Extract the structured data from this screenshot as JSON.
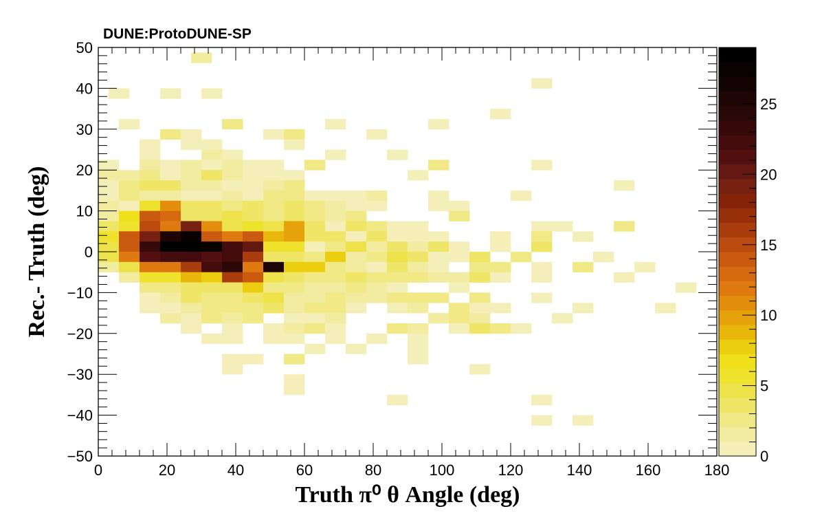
{
  "experiment_label": "DUNE:ProtoDUNE-SP",
  "chart_data": {
    "type": "heatmap",
    "xlabel": "Truth  π⁰  θ Angle (deg)",
    "ylabel": "Rec.- Truth (deg)",
    "xlim": [
      0,
      180
    ],
    "ylim": [
      -50,
      50
    ],
    "x_bin_width": 6,
    "y_bin_width": 2.5,
    "z_range": [
      0,
      29
    ],
    "x_ticks": [
      0,
      20,
      40,
      60,
      80,
      100,
      120,
      140,
      160,
      180
    ],
    "y_ticks": [
      -50,
      -40,
      -30,
      -20,
      -10,
      0,
      10,
      20,
      30,
      40,
      50
    ],
    "z_ticks": [
      0,
      5,
      10,
      15,
      20,
      25
    ],
    "palette": [
      "#f4efb8",
      "#f2eca0",
      "#f0e985",
      "#efe668",
      "#eee24a",
      "#efe22c",
      "#f0e01a",
      "#ecce10",
      "#e9b70c",
      "#e6a20b",
      "#e38e0d",
      "#de7a0f",
      "#d66a10",
      "#ca5a10",
      "#bb4b0f",
      "#aa3d0e",
      "#98300c",
      "#86240a",
      "#752010",
      "#641812",
      "#521010",
      "#440c0c",
      "#360a0a",
      "#290808",
      "#1e0606",
      "#130404",
      "#080202",
      "#000000"
    ],
    "cells": [
      [
        30,
        47.5,
        2
      ],
      [
        6,
        38.75,
        1
      ],
      [
        21,
        38.75,
        1
      ],
      [
        33,
        38.75,
        1
      ],
      [
        129,
        41.25,
        1
      ],
      [
        117,
        33.75,
        1
      ],
      [
        9,
        31.25,
        1
      ],
      [
        39,
        31.25,
        3
      ],
      [
        69,
        31.25,
        1
      ],
      [
        99,
        31.25,
        1
      ],
      [
        21,
        28.75,
        3
      ],
      [
        27,
        28.75,
        1
      ],
      [
        51,
        28.75,
        1
      ],
      [
        57,
        28.75,
        3
      ],
      [
        81,
        28.75,
        1
      ],
      [
        15,
        26.25,
        1
      ],
      [
        27,
        26.25,
        1
      ],
      [
        33,
        26.25,
        1
      ],
      [
        57,
        26.25,
        1
      ],
      [
        15,
        23.75,
        1
      ],
      [
        33,
        23.75,
        2
      ],
      [
        39,
        23.75,
        1
      ],
      [
        69,
        23.75,
        1
      ],
      [
        87,
        23.75,
        1
      ],
      [
        3,
        21.25,
        1
      ],
      [
        15,
        21.25,
        2
      ],
      [
        21,
        21.25,
        1
      ],
      [
        27,
        21.25,
        2
      ],
      [
        33,
        21.25,
        1
      ],
      [
        39,
        21.25,
        2
      ],
      [
        45,
        21.25,
        1
      ],
      [
        51,
        21.25,
        1
      ],
      [
        63,
        21.25,
        3
      ],
      [
        99,
        21.25,
        3
      ],
      [
        129,
        21.25,
        1
      ],
      [
        3,
        18.75,
        2
      ],
      [
        9,
        18.75,
        2
      ],
      [
        15,
        18.75,
        3
      ],
      [
        21,
        18.75,
        1
      ],
      [
        27,
        18.75,
        2
      ],
      [
        33,
        18.75,
        4
      ],
      [
        39,
        18.75,
        2
      ],
      [
        45,
        18.75,
        1
      ],
      [
        51,
        18.75,
        1
      ],
      [
        57,
        18.75,
        1
      ],
      [
        93,
        18.75,
        1
      ],
      [
        3,
        16.25,
        1
      ],
      [
        9,
        16.25,
        3
      ],
      [
        15,
        16.25,
        4
      ],
      [
        21,
        16.25,
        4
      ],
      [
        27,
        16.25,
        2
      ],
      [
        33,
        16.25,
        2
      ],
      [
        39,
        16.25,
        1
      ],
      [
        45,
        16.25,
        1
      ],
      [
        51,
        16.25,
        2
      ],
      [
        57,
        16.25,
        3
      ],
      [
        153,
        16.25,
        1
      ],
      [
        3,
        13.75,
        1
      ],
      [
        9,
        13.75,
        3
      ],
      [
        15,
        13.75,
        2
      ],
      [
        21,
        13.75,
        2
      ],
      [
        27,
        13.75,
        1
      ],
      [
        33,
        13.75,
        1
      ],
      [
        39,
        13.75,
        2
      ],
      [
        45,
        13.75,
        1
      ],
      [
        51,
        13.75,
        3
      ],
      [
        57,
        13.75,
        3
      ],
      [
        63,
        13.75,
        1
      ],
      [
        69,
        13.75,
        1
      ],
      [
        75,
        13.75,
        1
      ],
      [
        81,
        13.75,
        2
      ],
      [
        99,
        13.75,
        1
      ],
      [
        123,
        13.75,
        1
      ],
      [
        3,
        11.25,
        2
      ],
      [
        9,
        11.25,
        1
      ],
      [
        15,
        11.25,
        6
      ],
      [
        21,
        11.25,
        11
      ],
      [
        27,
        11.25,
        4
      ],
      [
        33,
        11.25,
        4
      ],
      [
        39,
        11.25,
        3
      ],
      [
        45,
        11.25,
        4
      ],
      [
        51,
        11.25,
        3
      ],
      [
        57,
        11.25,
        4
      ],
      [
        63,
        11.25,
        3
      ],
      [
        69,
        11.25,
        2
      ],
      [
        75,
        11.25,
        1
      ],
      [
        81,
        11.25,
        1
      ],
      [
        99,
        11.25,
        1
      ],
      [
        105,
        11.25,
        1
      ],
      [
        3,
        8.75,
        2
      ],
      [
        9,
        8.75,
        7
      ],
      [
        15,
        8.75,
        14
      ],
      [
        21,
        8.75,
        13
      ],
      [
        27,
        8.75,
        4
      ],
      [
        33,
        8.75,
        4
      ],
      [
        39,
        8.75,
        5
      ],
      [
        45,
        8.75,
        4
      ],
      [
        51,
        8.75,
        3
      ],
      [
        57,
        8.75,
        4
      ],
      [
        63,
        8.75,
        3
      ],
      [
        69,
        8.75,
        2
      ],
      [
        75,
        8.75,
        3
      ],
      [
        105,
        8.75,
        3
      ],
      [
        3,
        6.25,
        4
      ],
      [
        9,
        6.25,
        6
      ],
      [
        15,
        6.25,
        15
      ],
      [
        21,
        6.25,
        12
      ],
      [
        27,
        6.25,
        19
      ],
      [
        33,
        6.25,
        11
      ],
      [
        39,
        6.25,
        5
      ],
      [
        45,
        6.25,
        6
      ],
      [
        51,
        6.25,
        5
      ],
      [
        57,
        6.25,
        10
      ],
      [
        63,
        6.25,
        4
      ],
      [
        69,
        6.25,
        1
      ],
      [
        75,
        6.25,
        4
      ],
      [
        81,
        6.25,
        3
      ],
      [
        87,
        6.25,
        1
      ],
      [
        93,
        6.25,
        1
      ],
      [
        129,
        6.25,
        1
      ],
      [
        135,
        6.25,
        1
      ],
      [
        153,
        6.25,
        3
      ],
      [
        3,
        3.75,
        6
      ],
      [
        9,
        3.75,
        14
      ],
      [
        15,
        3.75,
        19
      ],
      [
        21,
        3.75,
        25
      ],
      [
        27,
        3.75,
        27
      ],
      [
        33,
        3.75,
        14
      ],
      [
        39,
        3.75,
        12
      ],
      [
        45,
        3.75,
        14
      ],
      [
        51,
        3.75,
        9
      ],
      [
        57,
        3.75,
        10
      ],
      [
        63,
        3.75,
        4
      ],
      [
        69,
        3.75,
        4
      ],
      [
        75,
        3.75,
        1
      ],
      [
        81,
        3.75,
        4
      ],
      [
        87,
        3.75,
        1
      ],
      [
        93,
        3.75,
        1
      ],
      [
        99,
        3.75,
        1
      ],
      [
        117,
        3.75,
        1
      ],
      [
        129,
        3.75,
        3
      ],
      [
        141,
        3.75,
        1
      ],
      [
        3,
        1.25,
        5
      ],
      [
        9,
        1.25,
        14
      ],
      [
        15,
        1.25,
        23
      ],
      [
        21,
        1.25,
        29
      ],
      [
        27,
        1.25,
        29
      ],
      [
        33,
        1.25,
        27
      ],
      [
        39,
        1.25,
        22
      ],
      [
        45,
        1.25,
        20
      ],
      [
        51,
        1.25,
        6
      ],
      [
        57,
        1.25,
        6
      ],
      [
        63,
        1.25,
        1
      ],
      [
        69,
        1.25,
        3
      ],
      [
        75,
        1.25,
        5
      ],
      [
        81,
        1.25,
        2
      ],
      [
        87,
        1.25,
        4
      ],
      [
        93,
        1.25,
        2
      ],
      [
        99,
        1.25,
        4
      ],
      [
        105,
        1.25,
        1
      ],
      [
        117,
        1.25,
        1
      ],
      [
        129,
        1.25,
        4
      ],
      [
        3,
        -1.25,
        5
      ],
      [
        9,
        -1.25,
        12
      ],
      [
        15,
        -1.25,
        21
      ],
      [
        21,
        -1.25,
        22
      ],
      [
        27,
        -1.25,
        22
      ],
      [
        33,
        -1.25,
        21
      ],
      [
        39,
        -1.25,
        22
      ],
      [
        45,
        -1.25,
        16
      ],
      [
        51,
        -1.25,
        4
      ],
      [
        57,
        -1.25,
        4
      ],
      [
        63,
        -1.25,
        3
      ],
      [
        69,
        -1.25,
        8
      ],
      [
        75,
        -1.25,
        2
      ],
      [
        81,
        -1.25,
        3
      ],
      [
        87,
        -1.25,
        5
      ],
      [
        93,
        -1.25,
        4
      ],
      [
        99,
        -1.25,
        1
      ],
      [
        105,
        -1.25,
        1
      ],
      [
        111,
        -1.25,
        4
      ],
      [
        123,
        -1.25,
        3
      ],
      [
        147,
        -1.25,
        1
      ],
      [
        3,
        -3.75,
        2
      ],
      [
        9,
        -3.75,
        5
      ],
      [
        15,
        -3.75,
        12
      ],
      [
        21,
        -3.75,
        12
      ],
      [
        27,
        -3.75,
        16
      ],
      [
        33,
        -3.75,
        22
      ],
      [
        39,
        -3.75,
        24
      ],
      [
        45,
        -3.75,
        12
      ],
      [
        51,
        -3.75,
        25
      ],
      [
        57,
        -3.75,
        8
      ],
      [
        63,
        -3.75,
        8
      ],
      [
        69,
        -3.75,
        3
      ],
      [
        75,
        -3.75,
        2
      ],
      [
        81,
        -3.75,
        1
      ],
      [
        87,
        -3.75,
        4
      ],
      [
        93,
        -3.75,
        2
      ],
      [
        99,
        -3.75,
        1
      ],
      [
        111,
        -3.75,
        3
      ],
      [
        117,
        -3.75,
        3
      ],
      [
        129,
        -3.75,
        1
      ],
      [
        141,
        -3.75,
        3
      ],
      [
        159,
        -3.75,
        1
      ],
      [
        9,
        -6.25,
        2
      ],
      [
        15,
        -6.25,
        6
      ],
      [
        21,
        -6.25,
        6
      ],
      [
        27,
        -6.25,
        9
      ],
      [
        33,
        -6.25,
        8
      ],
      [
        39,
        -6.25,
        16
      ],
      [
        45,
        -6.25,
        14
      ],
      [
        51,
        -6.25,
        5
      ],
      [
        57,
        -6.25,
        4
      ],
      [
        63,
        -6.25,
        3
      ],
      [
        69,
        -6.25,
        3
      ],
      [
        75,
        -6.25,
        4
      ],
      [
        81,
        -6.25,
        3
      ],
      [
        87,
        -6.25,
        3
      ],
      [
        93,
        -6.25,
        3
      ],
      [
        99,
        -6.25,
        2
      ],
      [
        105,
        -6.25,
        2
      ],
      [
        111,
        -6.25,
        4
      ],
      [
        117,
        -6.25,
        1
      ],
      [
        129,
        -6.25,
        1
      ],
      [
        153,
        -6.25,
        1
      ],
      [
        15,
        -8.75,
        3
      ],
      [
        21,
        -8.75,
        3
      ],
      [
        27,
        -8.75,
        4
      ],
      [
        33,
        -8.75,
        4
      ],
      [
        39,
        -8.75,
        4
      ],
      [
        45,
        -8.75,
        8
      ],
      [
        51,
        -8.75,
        3
      ],
      [
        57,
        -8.75,
        3
      ],
      [
        63,
        -8.75,
        2
      ],
      [
        69,
        -8.75,
        2
      ],
      [
        75,
        -8.75,
        3
      ],
      [
        81,
        -8.75,
        2
      ],
      [
        87,
        -8.75,
        1
      ],
      [
        105,
        -8.75,
        1
      ],
      [
        171,
        -8.75,
        1
      ],
      [
        15,
        -11.25,
        1
      ],
      [
        21,
        -11.25,
        2
      ],
      [
        27,
        -11.25,
        4
      ],
      [
        33,
        -11.25,
        3
      ],
      [
        39,
        -11.25,
        3
      ],
      [
        45,
        -11.25,
        4
      ],
      [
        51,
        -11.25,
        5
      ],
      [
        57,
        -11.25,
        2
      ],
      [
        63,
        -11.25,
        2
      ],
      [
        69,
        -11.25,
        3
      ],
      [
        75,
        -11.25,
        2
      ],
      [
        81,
        -11.25,
        2
      ],
      [
        87,
        -11.25,
        3
      ],
      [
        93,
        -11.25,
        3
      ],
      [
        99,
        -11.25,
        3
      ],
      [
        111,
        -11.25,
        3
      ],
      [
        129,
        -11.25,
        1
      ],
      [
        15,
        -13.75,
        1
      ],
      [
        21,
        -13.75,
        1
      ],
      [
        27,
        -13.75,
        2
      ],
      [
        33,
        -13.75,
        3
      ],
      [
        39,
        -13.75,
        3
      ],
      [
        45,
        -13.75,
        3
      ],
      [
        51,
        -13.75,
        4
      ],
      [
        57,
        -13.75,
        2
      ],
      [
        63,
        -13.75,
        3
      ],
      [
        69,
        -13.75,
        3
      ],
      [
        75,
        -13.75,
        1
      ],
      [
        87,
        -13.75,
        1
      ],
      [
        93,
        -13.75,
        2
      ],
      [
        105,
        -13.75,
        3
      ],
      [
        111,
        -13.75,
        1
      ],
      [
        117,
        -13.75,
        1
      ],
      [
        141,
        -13.75,
        1
      ],
      [
        165,
        -13.75,
        1
      ],
      [
        21,
        -16.25,
        2
      ],
      [
        27,
        -16.25,
        1
      ],
      [
        33,
        -16.25,
        3
      ],
      [
        39,
        -16.25,
        2
      ],
      [
        45,
        -16.25,
        3
      ],
      [
        57,
        -16.25,
        1
      ],
      [
        63,
        -16.25,
        1
      ],
      [
        69,
        -16.25,
        2
      ],
      [
        99,
        -16.25,
        2
      ],
      [
        105,
        -16.25,
        3
      ],
      [
        111,
        -16.25,
        2
      ],
      [
        135,
        -16.25,
        1
      ],
      [
        27,
        -18.75,
        1
      ],
      [
        39,
        -18.75,
        1
      ],
      [
        51,
        -18.75,
        1
      ],
      [
        57,
        -18.75,
        2
      ],
      [
        63,
        -18.75,
        3
      ],
      [
        69,
        -18.75,
        1
      ],
      [
        87,
        -18.75,
        3
      ],
      [
        93,
        -18.75,
        2
      ],
      [
        105,
        -18.75,
        1
      ],
      [
        111,
        -18.75,
        4
      ],
      [
        117,
        -18.75,
        3
      ],
      [
        123,
        -18.75,
        1
      ],
      [
        33,
        -21.25,
        1
      ],
      [
        39,
        -21.25,
        1
      ],
      [
        51,
        -21.25,
        1
      ],
      [
        57,
        -21.25,
        1
      ],
      [
        69,
        -21.25,
        1
      ],
      [
        81,
        -21.25,
        1
      ],
      [
        93,
        -21.25,
        1
      ],
      [
        63,
        -23.75,
        1
      ],
      [
        75,
        -23.75,
        1
      ],
      [
        93,
        -23.75,
        1
      ],
      [
        39,
        -26.25,
        1
      ],
      [
        45,
        -26.25,
        1
      ],
      [
        57,
        -26.25,
        3
      ],
      [
        93,
        -26.25,
        1
      ],
      [
        39,
        -28.75,
        1
      ],
      [
        111,
        -28.75,
        1
      ],
      [
        57,
        -31.25,
        1
      ],
      [
        57,
        -33.75,
        1
      ],
      [
        87,
        -36.25,
        1
      ],
      [
        129,
        -36.25,
        1
      ],
      [
        129,
        -41.25,
        1
      ],
      [
        141,
        -41.25,
        1
      ]
    ]
  }
}
